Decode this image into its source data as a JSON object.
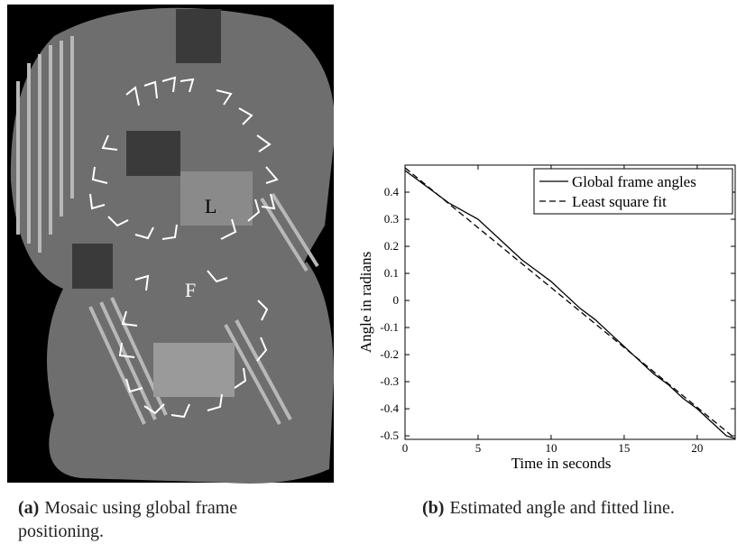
{
  "figure": {
    "left": {
      "labels": [
        "L",
        "F"
      ],
      "caption_tag": "(a)",
      "caption": "Mosaic using global frame positioning."
    },
    "right": {
      "caption_tag": "(b)",
      "caption": "Estimated angle and fitted line."
    }
  },
  "chart_data": {
    "type": "line",
    "xlabel": "Time in seconds",
    "ylabel": "Angle in radians",
    "xlim": [
      0,
      22.6
    ],
    "ylim": [
      -0.513,
      0.5
    ],
    "xticks": [
      0,
      5,
      10,
      15,
      20
    ],
    "yticks": [
      -0.5,
      -0.4,
      -0.3,
      -0.2,
      -0.1,
      0,
      0.1,
      0.2,
      0.3,
      0.4
    ],
    "legend": "upper right",
    "series": [
      {
        "name": "Global frame angles",
        "color": "#000000",
        "dash": "solid",
        "x": [
          0,
          1,
          2,
          3,
          4,
          5,
          6,
          7,
          8,
          9,
          10,
          11,
          12,
          13,
          14,
          15,
          16,
          17,
          18,
          19,
          20,
          21,
          22,
          22.6
        ],
        "values": [
          0.48,
          0.44,
          0.4,
          0.36,
          0.33,
          0.3,
          0.25,
          0.2,
          0.15,
          0.11,
          0.07,
          0.02,
          -0.03,
          -0.07,
          -0.12,
          -0.17,
          -0.22,
          -0.27,
          -0.31,
          -0.36,
          -0.4,
          -0.45,
          -0.5,
          -0.51
        ]
      },
      {
        "name": "Least square fit",
        "color": "#000000",
        "dash": "dashed",
        "x": [
          0,
          22.6
        ],
        "values": [
          0.49,
          -0.51
        ]
      }
    ]
  }
}
